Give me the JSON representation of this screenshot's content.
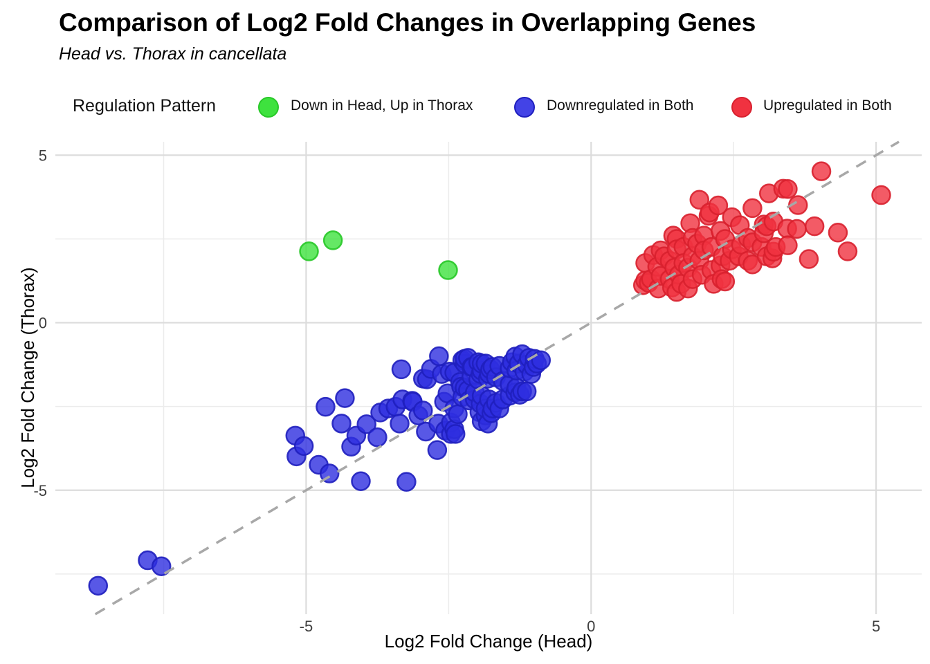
{
  "chart_data": {
    "type": "scatter",
    "title": "Comparison of Log2 Fold Changes in Overlapping Genes",
    "subtitle": "Head vs. Thorax in cancellata",
    "xlabel": "Log2 Fold Change (Head)",
    "ylabel": "Log2 Fold Change (Thorax)",
    "legend_title": "Regulation Pattern",
    "xlim": [
      -9.4,
      5.8
    ],
    "ylim": [
      -8.7,
      5.4
    ],
    "xticks": [
      -5,
      0,
      5
    ],
    "yticks": [
      5,
      0,
      -5
    ],
    "x_minor_ticks": [
      -7.5,
      -2.5,
      2.5
    ],
    "y_minor_ticks": [
      -7.5,
      -2.5,
      2.5
    ],
    "grid": "on",
    "legend_position": "top",
    "identity_line": {
      "equation": "y = x",
      "style": "dashed",
      "color": "#a8a8a8"
    },
    "colors": {
      "major_grid": "#dcdcdc",
      "minor_grid": "#ececec",
      "tick_text": "#3f3f3f"
    },
    "series": [
      {
        "name": "Down in Head, Up in Thorax",
        "color": "#3ee23e",
        "stroke": "#28c828",
        "points": [
          [
            -4.95,
            2.13
          ],
          [
            -4.53,
            2.46
          ],
          [
            -2.51,
            1.57
          ]
        ]
      },
      {
        "name": "Downregulated in Both",
        "color": "#2e2ee0",
        "stroke": "#1f1fbe",
        "points": [
          [
            -8.65,
            -7.85
          ],
          [
            -7.78,
            -7.09
          ],
          [
            -7.54,
            -7.27
          ],
          [
            -5.19,
            -3.37
          ],
          [
            -5.17,
            -3.99
          ],
          [
            -5.04,
            -3.68
          ],
          [
            -4.78,
            -4.24
          ],
          [
            -4.66,
            -2.51
          ],
          [
            -4.59,
            -4.5
          ],
          [
            -4.38,
            -3.01
          ],
          [
            -4.32,
            -2.25
          ],
          [
            -4.21,
            -3.7
          ],
          [
            -4.12,
            -3.37
          ],
          [
            -4.04,
            -4.73
          ],
          [
            -3.94,
            -3.03
          ],
          [
            -3.75,
            -3.42
          ],
          [
            -3.7,
            -2.68
          ],
          [
            -3.56,
            -2.56
          ],
          [
            -3.43,
            -2.51
          ],
          [
            -3.36,
            -3.01
          ],
          [
            -3.33,
            -1.39
          ],
          [
            -3.31,
            -2.29
          ],
          [
            -3.24,
            -4.75
          ],
          [
            -3.14,
            -2.33
          ],
          [
            -3.13,
            -2.36
          ],
          [
            -3.03,
            -2.77
          ],
          [
            -2.95,
            -2.62
          ],
          [
            -2.95,
            -1.67
          ],
          [
            -2.9,
            -3.25
          ],
          [
            -2.88,
            -1.69
          ],
          [
            -2.81,
            -1.38
          ],
          [
            -2.7,
            -3.8
          ],
          [
            -2.68,
            -3.01
          ],
          [
            -2.67,
            -1.0
          ],
          [
            -2.62,
            -1.53
          ],
          [
            -2.58,
            -2.36
          ],
          [
            -2.56,
            -3.22
          ],
          [
            -2.52,
            -2.11
          ],
          [
            -2.48,
            -1.46
          ],
          [
            -2.46,
            -3.32
          ],
          [
            -2.46,
            -2.98
          ],
          [
            -2.4,
            -3.18
          ],
          [
            -2.4,
            -2.56
          ],
          [
            -2.4,
            -1.49
          ],
          [
            -2.38,
            -3.32
          ],
          [
            -2.34,
            -2.73
          ],
          [
            -2.3,
            -1.77
          ],
          [
            -2.28,
            -1.91
          ],
          [
            -2.26,
            -2.22
          ],
          [
            -2.26,
            -1.12
          ],
          [
            -2.22,
            -1.94
          ],
          [
            -2.22,
            -1.22
          ],
          [
            -2.22,
            -1.08
          ],
          [
            -2.16,
            -2.01
          ],
          [
            -2.16,
            -1.05
          ],
          [
            -2.14,
            -2.32
          ],
          [
            -2.1,
            -1.6
          ],
          [
            -2.1,
            -1.32
          ],
          [
            -2.08,
            -1.32
          ],
          [
            -2.04,
            -2.29
          ],
          [
            -2.04,
            -2.08
          ],
          [
            -1.98,
            -1.7
          ],
          [
            -1.98,
            -1.18
          ],
          [
            -1.96,
            -2.67
          ],
          [
            -1.94,
            -2.42
          ],
          [
            -1.94,
            -1.53
          ],
          [
            -1.92,
            -2.94
          ],
          [
            -1.92,
            -2.18
          ],
          [
            -1.92,
            -1.43
          ],
          [
            -1.92,
            -1.22
          ],
          [
            -1.85,
            -2.77
          ],
          [
            -1.85,
            -2.56
          ],
          [
            -1.85,
            -1.22
          ],
          [
            -1.81,
            -3.01
          ],
          [
            -1.81,
            -1.67
          ],
          [
            -1.79,
            -2.29
          ],
          [
            -1.79,
            -1.53
          ],
          [
            -1.77,
            -1.39
          ],
          [
            -1.75,
            -2.7
          ],
          [
            -1.73,
            -2.56
          ],
          [
            -1.73,
            -1.32
          ],
          [
            -1.67,
            -2.39
          ],
          [
            -1.67,
            -1.63
          ],
          [
            -1.61,
            -2.56
          ],
          [
            -1.61,
            -1.29
          ],
          [
            -1.55,
            -2.29
          ],
          [
            -1.55,
            -1.74
          ],
          [
            -1.43,
            -2.18
          ],
          [
            -1.43,
            -1.84
          ],
          [
            -1.43,
            -1.36
          ],
          [
            -1.39,
            -1.18
          ],
          [
            -1.33,
            -2.08
          ],
          [
            -1.33,
            -1.01
          ],
          [
            -1.31,
            -1.94
          ],
          [
            -1.31,
            -1.43
          ],
          [
            -1.27,
            -1.22
          ],
          [
            -1.25,
            -2.15
          ],
          [
            -1.21,
            -2.05
          ],
          [
            -1.21,
            -0.94
          ],
          [
            -1.17,
            -1.46
          ],
          [
            -1.13,
            -2.05
          ],
          [
            -1.13,
            -1.25
          ],
          [
            -1.09,
            -1.05
          ],
          [
            -1.05,
            -1.53
          ],
          [
            -1.01,
            -1.32
          ],
          [
            -0.99,
            -1.08
          ],
          [
            -0.95,
            -1.22
          ],
          [
            -0.88,
            -1.12
          ]
        ]
      },
      {
        "name": "Upregulated in Both",
        "color": "#f03240",
        "stroke": "#d8202e",
        "points": [
          [
            0.91,
            1.12
          ],
          [
            0.95,
            1.26
          ],
          [
            0.95,
            1.78
          ],
          [
            1.01,
            1.19
          ],
          [
            1.05,
            1.3
          ],
          [
            1.09,
            2.02
          ],
          [
            1.16,
            1.67
          ],
          [
            1.18,
            1.02
          ],
          [
            1.22,
            2.16
          ],
          [
            1.22,
            1.4
          ],
          [
            1.28,
            1.98
          ],
          [
            1.38,
            1.85
          ],
          [
            1.38,
            1.3
          ],
          [
            1.42,
            1.05
          ],
          [
            1.44,
            2.6
          ],
          [
            1.46,
            1.64
          ],
          [
            1.5,
            2.5
          ],
          [
            1.5,
            2.19
          ],
          [
            1.5,
            0.92
          ],
          [
            1.54,
            1.43
          ],
          [
            1.58,
            1.16
          ],
          [
            1.62,
            2.26
          ],
          [
            1.62,
            1.78
          ],
          [
            1.7,
            1.64
          ],
          [
            1.7,
            1.02
          ],
          [
            1.74,
            2.97
          ],
          [
            1.78,
            2.53
          ],
          [
            1.78,
            1.98
          ],
          [
            1.78,
            1.3
          ],
          [
            1.86,
            2.36
          ],
          [
            1.9,
            3.67
          ],
          [
            1.9,
            1.85
          ],
          [
            1.94,
            1.43
          ],
          [
            1.98,
            2.6
          ],
          [
            1.98,
            2.16
          ],
          [
            2.06,
            3.19
          ],
          [
            2.08,
            3.29
          ],
          [
            2.11,
            2.26
          ],
          [
            2.11,
            1.57
          ],
          [
            2.15,
            1.16
          ],
          [
            2.23,
            3.5
          ],
          [
            2.27,
            2.74
          ],
          [
            2.27,
            1.71
          ],
          [
            2.29,
            1.3
          ],
          [
            2.31,
            1.98
          ],
          [
            2.35,
            2.5
          ],
          [
            2.35,
            1.23
          ],
          [
            2.43,
            1.85
          ],
          [
            2.47,
            3.15
          ],
          [
            2.47,
            2.19
          ],
          [
            2.59,
            1.98
          ],
          [
            2.61,
            2.91
          ],
          [
            2.63,
            2.33
          ],
          [
            2.75,
            2.53
          ],
          [
            2.75,
            1.85
          ],
          [
            2.83,
            3.42
          ],
          [
            2.83,
            2.4
          ],
          [
            2.83,
            1.74
          ],
          [
            2.99,
            2.26
          ],
          [
            3.03,
            2.93
          ],
          [
            3.03,
            2.67
          ],
          [
            3.08,
            2.88
          ],
          [
            3.08,
            1.98
          ],
          [
            3.12,
            3.86
          ],
          [
            3.18,
            1.92
          ],
          [
            3.2,
            3.02
          ],
          [
            3.2,
            2.12
          ],
          [
            3.24,
            2.26
          ],
          [
            3.37,
            4.0
          ],
          [
            3.45,
            3.99
          ],
          [
            3.44,
            2.81
          ],
          [
            3.45,
            2.31
          ],
          [
            3.61,
            2.8
          ],
          [
            3.63,
            3.51
          ],
          [
            3.82,
            1.9
          ],
          [
            3.92,
            2.88
          ],
          [
            4.04,
            4.52
          ],
          [
            4.33,
            2.69
          ],
          [
            4.5,
            2.13
          ],
          [
            5.09,
            3.81
          ]
        ]
      }
    ]
  }
}
